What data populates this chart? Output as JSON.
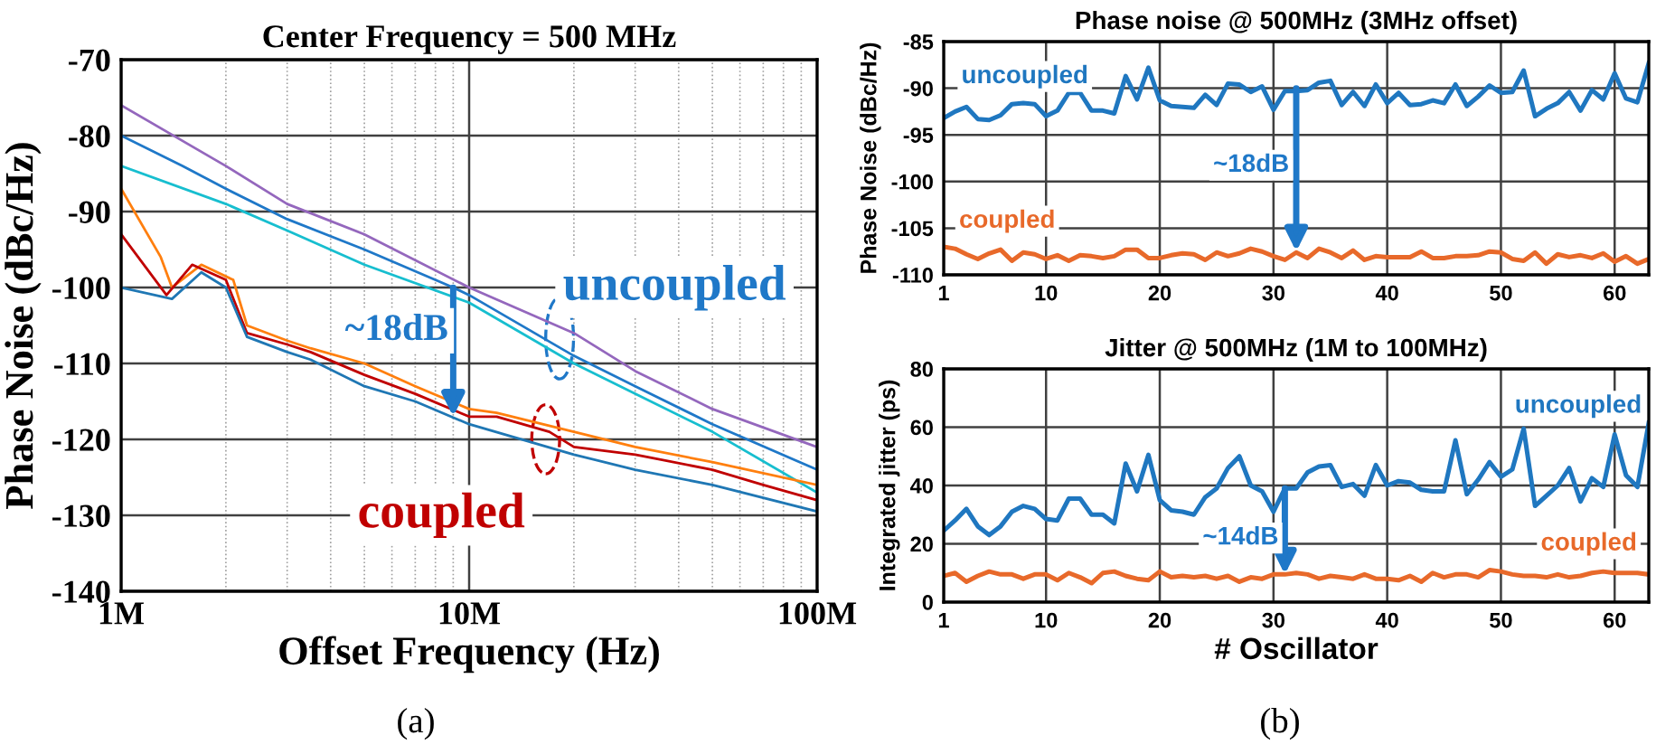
{
  "chart_data": [
    {
      "type": "line",
      "title": "Center Frequency = 500 MHz",
      "xlabel": "Offset Frequency (Hz)",
      "ylabel": "Phase Noise (dBc/Hz)",
      "log": "x",
      "grid": true,
      "xlim": [
        1000000,
        100000000
      ],
      "xticks": [
        {
          "value": 1000000,
          "label": "1M"
        },
        {
          "value": 10000000,
          "label": "10M"
        },
        {
          "value": 100000000,
          "label": "100M"
        }
      ],
      "ylim": [
        -140,
        -70
      ],
      "yticks": [
        -140,
        -130,
        -120,
        -110,
        -100,
        -90,
        -80,
        -70
      ],
      "series": [
        {
          "color": "#9467bd",
          "x": [
            1000000,
            2000000,
            3000000,
            5000000,
            10000000,
            20000000,
            30000000,
            50000000,
            100000000
          ],
          "values": [
            -76,
            -84,
            -89,
            -93,
            -100,
            -106,
            -111,
            -116,
            -121
          ]
        },
        {
          "name": "uncoupled",
          "color": "#1f78c8",
          "x": [
            1000000,
            1500000,
            2000000,
            3000000,
            5000000,
            9000000,
            10000000,
            20000000,
            30000000,
            50000000,
            100000000
          ],
          "values": [
            -80,
            -84,
            -87,
            -91,
            -95,
            -100,
            -101,
            -109,
            -113,
            -118,
            -124
          ]
        },
        {
          "color": "#17becf",
          "x": [
            1000000,
            2000000,
            3000000,
            5000000,
            10000000,
            20000000,
            30000000,
            50000000,
            100000000
          ],
          "values": [
            -84,
            -89,
            -92.5,
            -97,
            -102,
            -110,
            -114,
            -119,
            -127
          ]
        },
        {
          "color": "#ff7f0e",
          "x": [
            1000000,
            1300000,
            1400000,
            1700000,
            2100000,
            2300000,
            3000000,
            3500000,
            5000000,
            7000000,
            10000000,
            12000000,
            20000000,
            30000000,
            50000000,
            100000000
          ],
          "values": [
            -87,
            -96,
            -100,
            -97,
            -99,
            -105,
            -107,
            -108,
            -110,
            -113,
            -116,
            -116.5,
            -119,
            -121,
            -123,
            -126
          ]
        },
        {
          "name": "coupled",
          "color": "#c00000",
          "x": [
            1000000,
            1350000,
            1600000,
            2000000,
            2300000,
            3000000,
            3500000,
            5000000,
            7000000,
            10000000,
            12000000,
            17000000,
            20000000,
            30000000,
            50000000,
            70000000,
            100000000
          ],
          "values": [
            -93,
            -101,
            -97,
            -99,
            -106,
            -107.5,
            -108.5,
            -111.5,
            -114,
            -117,
            -117,
            -119,
            -121,
            -122,
            -124,
            -126,
            -128
          ]
        },
        {
          "color": "#1f77b4",
          "x": [
            1000000,
            1400000,
            1700000,
            2000000,
            2300000,
            3000000,
            3500000,
            5000000,
            7000000,
            10000000,
            20000000,
            30000000,
            50000000,
            100000000
          ],
          "values": [
            -100,
            -101.5,
            -98,
            -100,
            -106.5,
            -108.5,
            -109.5,
            -113,
            -115,
            -118,
            -122,
            -124,
            -126,
            -129.5
          ]
        }
      ],
      "annotations": [
        {
          "text": "~18dB",
          "x": 9000000,
          "y": -117
        },
        "(a)"
      ]
    },
    {
      "type": "line",
      "title": "Phase noise @ 500MHz (3MHz offset)",
      "ylabel": "Phase Noise (dBc/Hz)",
      "grid": true,
      "xlim": [
        1,
        63
      ],
      "xticks": [
        1,
        10,
        20,
        30,
        40,
        50,
        60
      ],
      "ylim": [
        -110,
        -85
      ],
      "yticks": [
        -110,
        -105,
        -100,
        -95,
        -90,
        -85
      ],
      "x": [
        1,
        2,
        3,
        4,
        5,
        6,
        7,
        8,
        9,
        10,
        11,
        12,
        13,
        14,
        15,
        16,
        17,
        18,
        19,
        20,
        21,
        22,
        23,
        24,
        25,
        26,
        27,
        28,
        29,
        30,
        31,
        32,
        33,
        34,
        35,
        36,
        37,
        38,
        39,
        40,
        41,
        42,
        43,
        44,
        45,
        46,
        47,
        48,
        49,
        50,
        51,
        52,
        53,
        54,
        55,
        56,
        57,
        58,
        59,
        60,
        61,
        62,
        63
      ],
      "series": [
        {
          "name": "uncoupled",
          "color": "#1f77c0",
          "values": [
            -93.2,
            -92.5,
            -92,
            -93.3,
            -93.4,
            -92.9,
            -91.7,
            -91.6,
            -91.7,
            -93,
            -92.4,
            -90.5,
            -90.5,
            -92.4,
            -92.4,
            -92.7,
            -88.7,
            -91.2,
            -87.8,
            -91.3,
            -91.9,
            -92,
            -92.1,
            -90.7,
            -91.8,
            -89.5,
            -89.6,
            -90.4,
            -89.8,
            -92.3,
            -90.3,
            -90.3,
            -90.2,
            -89.4,
            -89.2,
            -91.8,
            -90.4,
            -91.9,
            -89.6,
            -91.6,
            -90.5,
            -91.8,
            -91.7,
            -91.3,
            -91.6,
            -89.6,
            -91.9,
            -90.9,
            -89.7,
            -90.5,
            -90.4,
            -88.1,
            -93,
            -92.2,
            -91.6,
            -90.4,
            -92.4,
            -90.2,
            -91.2,
            -88.4,
            -91.1,
            -91.5,
            -87.3
          ]
        },
        {
          "name": "coupled",
          "color": "#e8692a",
          "values": [
            -107,
            -107.2,
            -107.8,
            -108.3,
            -107.7,
            -107.3,
            -108.5,
            -107.6,
            -107.8,
            -108.3,
            -107.9,
            -108.5,
            -107.9,
            -108,
            -108.2,
            -108,
            -107.3,
            -107.3,
            -108.2,
            -108.2,
            -107.9,
            -107.7,
            -107.8,
            -108.4,
            -107.6,
            -108,
            -107.7,
            -107.2,
            -107.5,
            -108,
            -108.4,
            -107.6,
            -108.2,
            -107.2,
            -107.6,
            -108.2,
            -107.4,
            -108.4,
            -108,
            -108.1,
            -108.1,
            -108.1,
            -107.5,
            -108.2,
            -108.2,
            -108,
            -108,
            -107.9,
            -107.5,
            -107.6,
            -108.3,
            -108.5,
            -107.6,
            -108.8,
            -107.8,
            -108.1,
            -107.9,
            -108.2,
            -107.7,
            -108.6,
            -108,
            -108.8,
            -108.3
          ]
        }
      ],
      "annotations": [
        "~18dB",
        "(b)"
      ]
    },
    {
      "type": "line",
      "title": "Jitter @ 500MHz (1M to 100MHz)",
      "xlabel": "# Oscillator",
      "ylabel": "Integrated jitter (ps)",
      "grid": true,
      "xlim": [
        1,
        63
      ],
      "xticks": [
        1,
        10,
        20,
        30,
        40,
        50,
        60
      ],
      "ylim": [
        0,
        80
      ],
      "yticks": [
        0,
        20,
        40,
        60,
        80
      ],
      "x": [
        1,
        2,
        3,
        4,
        5,
        6,
        7,
        8,
        9,
        10,
        11,
        12,
        13,
        14,
        15,
        16,
        17,
        18,
        19,
        20,
        21,
        22,
        23,
        24,
        25,
        26,
        27,
        28,
        29,
        30,
        31,
        32,
        33,
        34,
        35,
        36,
        37,
        38,
        39,
        40,
        41,
        42,
        43,
        44,
        45,
        46,
        47,
        48,
        49,
        50,
        51,
        52,
        53,
        54,
        55,
        56,
        57,
        58,
        59,
        60,
        61,
        62,
        63
      ],
      "series": [
        {
          "name": "uncoupled",
          "color": "#1f77c0",
          "values": [
            24.5,
            28,
            32,
            26,
            23,
            26,
            31,
            33,
            32,
            28.5,
            28,
            35.5,
            35.5,
            30,
            30,
            27,
            47.5,
            38,
            50.5,
            35,
            31.5,
            31,
            30,
            36,
            39,
            46,
            50,
            40,
            38,
            31,
            39,
            39,
            44.5,
            46.5,
            47,
            39.5,
            40.5,
            36.5,
            47,
            40,
            41.5,
            41,
            38.5,
            38,
            38,
            55.5,
            37,
            42,
            48,
            43,
            45.5,
            59.5,
            33,
            36.5,
            40,
            46,
            34.5,
            42.5,
            39.5,
            57.5,
            43.5,
            39.5,
            61.5
          ]
        },
        {
          "name": "coupled",
          "color": "#e8692a",
          "values": [
            9,
            10,
            7,
            9,
            10.5,
            9.5,
            9.5,
            8,
            9.5,
            9.5,
            7.5,
            10,
            8.5,
            6.5,
            10,
            10.5,
            9,
            8,
            7.5,
            10.5,
            8.5,
            9,
            8.5,
            9,
            8,
            9,
            7,
            8.5,
            8,
            9.5,
            9.5,
            10,
            9.5,
            8,
            9,
            8.5,
            8,
            9.5,
            8,
            8,
            7.5,
            9,
            7,
            10,
            8.5,
            9.5,
            9.5,
            8.5,
            11,
            10.5,
            9.5,
            9,
            9,
            8.5,
            9.5,
            8.5,
            9,
            10,
            10.5,
            10,
            10,
            10,
            9.5
          ]
        }
      ],
      "annotations": [
        {
          "text": "~14dB",
          "x": 31,
          "y": 9.5
        }
      ]
    }
  ]
}
